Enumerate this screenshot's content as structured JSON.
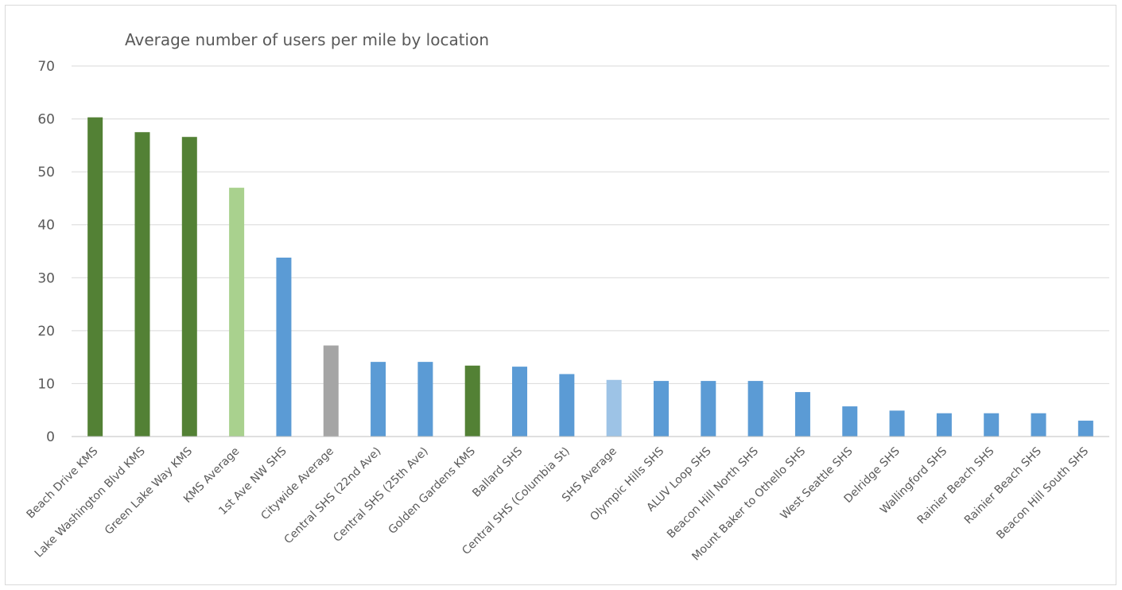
{
  "chart_data": {
    "type": "bar",
    "title": "Average number of users per mile by location",
    "xlabel": "",
    "ylabel": "",
    "ylim": [
      0,
      70
    ],
    "yticks": [
      0,
      10,
      20,
      30,
      40,
      50,
      60,
      70
    ],
    "grid": true,
    "legend": "none",
    "categories": [
      "Beach Drive KMS",
      "Lake Washington Blvd KMS",
      "Green Lake Way KMS",
      "KMS Average",
      "1st Ave NW SHS",
      "Citywide Average",
      "Central SHS (22nd Ave)",
      "Central SHS (25th Ave)",
      "Golden Gardens KMS",
      "Ballard SHS",
      "Central SHS (Columbia St)",
      "SHS Average",
      "Olympic Hills SHS",
      "ALUV Loop SHS",
      "Beacon Hill North SHS",
      "Mount Baker to Othello SHS",
      "West Seattle SHS",
      "Delridge SHS",
      "Wallingford SHS",
      "Rainier Beach SHS",
      "Rainier Beach SHS",
      "Beacon Hill South SHS"
    ],
    "values": [
      60.3,
      57.5,
      56.6,
      47.0,
      33.8,
      17.2,
      14.1,
      14.1,
      13.4,
      13.2,
      11.8,
      10.7,
      10.5,
      10.5,
      10.5,
      8.4,
      5.7,
      4.9,
      4.4,
      4.4,
      4.4,
      3.0
    ],
    "bar_colors": [
      "#538135",
      "#538135",
      "#538135",
      "#a9d18e",
      "#5b9bd5",
      "#a5a5a5",
      "#5b9bd5",
      "#5b9bd5",
      "#538135",
      "#5b9bd5",
      "#5b9bd5",
      "#9dc3e6",
      "#5b9bd5",
      "#5b9bd5",
      "#5b9bd5",
      "#5b9bd5",
      "#5b9bd5",
      "#5b9bd5",
      "#5b9bd5",
      "#5b9bd5",
      "#5b9bd5",
      "#5b9bd5"
    ]
  }
}
